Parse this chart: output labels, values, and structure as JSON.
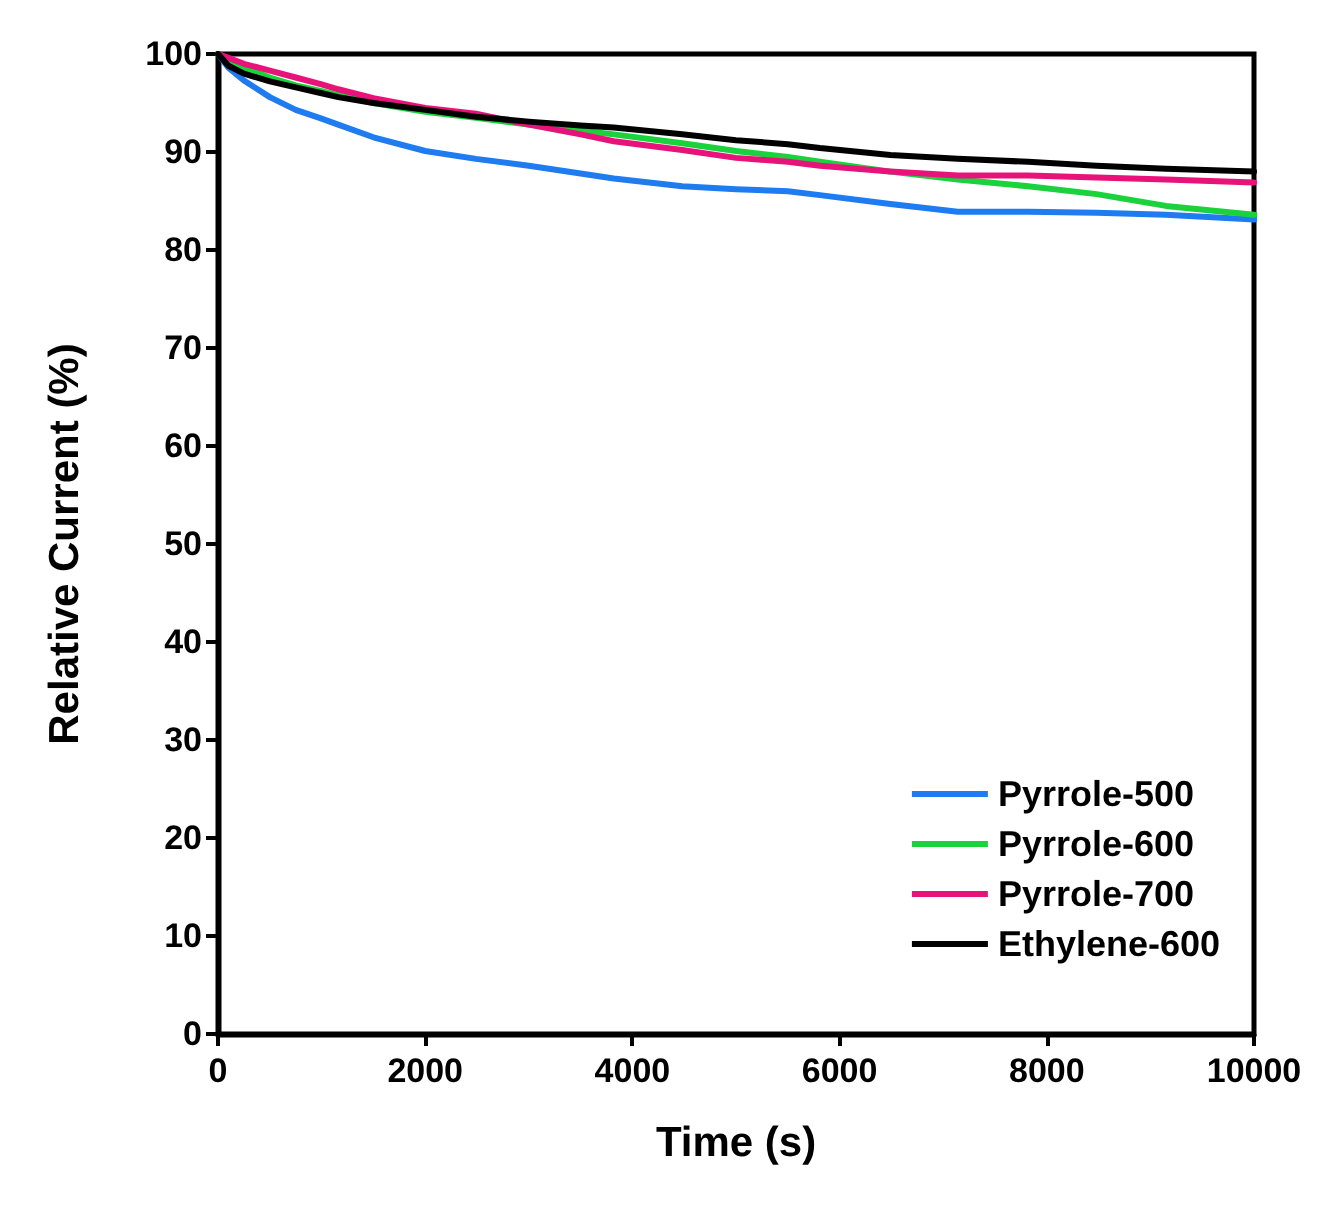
{
  "chart_data": {
    "type": "line",
    "xlabel": "Time (s)",
    "ylabel": "Relative Current (%)",
    "xlim": [
      0,
      10000
    ],
    "xticks": [
      0,
      2000,
      4000,
      6000,
      8000,
      10000
    ],
    "ylim": [
      0,
      100
    ],
    "yticks": [
      0,
      10,
      20,
      30,
      40,
      50,
      60,
      70,
      80,
      90,
      100
    ],
    "grid": false,
    "legend": "bottom right",
    "marker": "none",
    "line_style": "solid",
    "x": [
      0,
      100,
      250,
      500,
      750,
      1000,
      1160,
      1500,
      2000,
      2490,
      3000,
      3500,
      3820,
      4480,
      5000,
      5500,
      5810,
      6490,
      7140,
      7820,
      8480,
      9150,
      10000
    ],
    "series": [
      {
        "name": "Pyrrole-500",
        "color": "#1e7cf0",
        "values": [
          100,
          98.6,
          97.3,
          95.6,
          94.3,
          93.4,
          92.8,
          91.5,
          90.1,
          89.3,
          88.6,
          87.8,
          87.3,
          86.5,
          86.2,
          86.0,
          85.6,
          84.7,
          83.9,
          83.9,
          83.8,
          83.6,
          83.1
        ]
      },
      {
        "name": "Pyrrole-600",
        "color": "#19d23c",
        "values": [
          100,
          99.3,
          98.6,
          97.6,
          96.8,
          96.2,
          95.8,
          95.0,
          94.1,
          93.5,
          92.8,
          92.2,
          91.8,
          90.9,
          90.1,
          89.5,
          89.0,
          88.0,
          87.2,
          86.5,
          85.7,
          84.5,
          83.6
        ]
      },
      {
        "name": "Pyrrole-700",
        "color": "#e8137a",
        "values": [
          100,
          99.6,
          99.0,
          98.3,
          97.6,
          96.9,
          96.4,
          95.5,
          94.5,
          93.9,
          92.8,
          91.8,
          91.1,
          90.2,
          89.4,
          89.0,
          88.6,
          88.0,
          87.6,
          87.6,
          87.4,
          87.2,
          86.9
        ]
      },
      {
        "name": "Ethylene-600",
        "color": "#000000",
        "values": [
          100,
          98.8,
          98.0,
          97.2,
          96.6,
          96.0,
          95.6,
          95.0,
          94.3,
          93.6,
          93.1,
          92.7,
          92.5,
          91.8,
          91.2,
          90.8,
          90.4,
          89.7,
          89.3,
          89.0,
          88.6,
          88.3,
          88.0
        ]
      }
    ]
  }
}
